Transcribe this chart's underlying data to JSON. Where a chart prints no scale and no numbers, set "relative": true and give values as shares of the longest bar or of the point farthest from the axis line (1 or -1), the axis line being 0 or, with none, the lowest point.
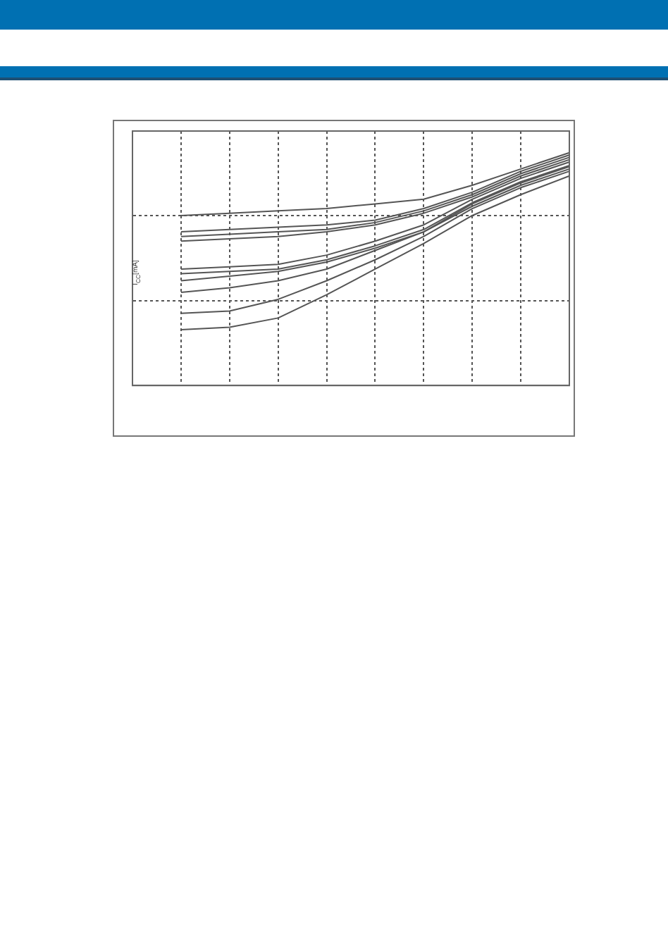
{
  "chart_data": {
    "type": "line",
    "ylabel": "I$_{CC}$[mA]",
    "relative": true,
    "grid": true,
    "legend": false,
    "marker": "none",
    "line_style": "solid",
    "categories": [
      null,
      null,
      null,
      null,
      null,
      null,
      null,
      null,
      null,
      null
    ],
    "series": [
      {
        "color": "#555555",
        "values": [
          null,
          0.73,
          0.74,
          0.75,
          0.76,
          0.78,
          0.8,
          0.86,
          0.93,
          1
        ]
      },
      {
        "color": "#555555",
        "values": [
          null,
          0.66,
          0.67,
          0.68,
          0.69,
          0.71,
          0.76,
          0.83,
          0.92,
          0.99
        ]
      },
      {
        "color": "#555555",
        "values": [
          null,
          0.64,
          0.65,
          0.66,
          0.67,
          0.7,
          0.75,
          0.82,
          0.91,
          0.98
        ]
      },
      {
        "color": "#555555",
        "values": [
          null,
          0.62,
          0.63,
          0.64,
          0.66,
          0.69,
          0.74,
          0.81,
          0.9,
          0.97
        ]
      },
      {
        "color": "#555555",
        "values": [
          null,
          0.5,
          0.51,
          0.52,
          0.56,
          0.62,
          0.69,
          0.8,
          0.89,
          0.96
        ]
      },
      {
        "color": "#555555",
        "values": [
          null,
          0.48,
          0.49,
          0.5,
          0.54,
          0.6,
          0.67,
          0.785,
          0.875,
          0.945
        ]
      },
      {
        "color": "#555555",
        "values": [
          null,
          0.45,
          0.47,
          0.49,
          0.53,
          0.59,
          0.66,
          0.78,
          0.87,
          0.94
        ]
      },
      {
        "color": "#555555",
        "values": [
          null,
          0.4,
          0.42,
          0.45,
          0.5,
          0.58,
          0.66,
          0.77,
          0.86,
          0.93
        ]
      },
      {
        "color": "#555555",
        "values": [
          null,
          0.31,
          0.32,
          0.37,
          0.45,
          0.54,
          0.64,
          0.76,
          0.85,
          0.92
        ]
      },
      {
        "color": "#555555",
        "values": [
          null,
          0.24,
          0.25,
          0.29,
          0.39,
          0.5,
          0.61,
          0.73,
          0.82,
          0.9
        ]
      }
    ]
  }
}
